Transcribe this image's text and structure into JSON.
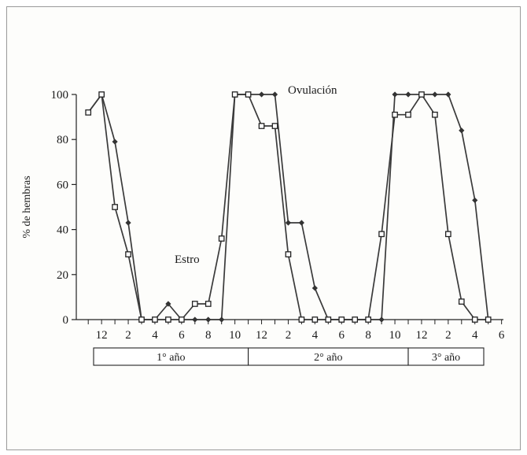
{
  "chart_data": {
    "type": "line",
    "title": "",
    "xlabel": "",
    "ylabel": "% de hembras",
    "ylim": [
      0,
      100
    ],
    "yticks": [
      0,
      20,
      40,
      60,
      80,
      100
    ],
    "xlim": [
      0,
      31
    ],
    "x_tick_labels": [
      "12",
      "2",
      "4",
      "6",
      "8",
      "10",
      "12",
      "2",
      "4",
      "6",
      "8",
      "10",
      "12",
      "2",
      "4",
      "6"
    ],
    "x_tick_positions": [
      2,
      4,
      6,
      8,
      10,
      12,
      14,
      16,
      18,
      20,
      22,
      24,
      26,
      28,
      30,
      32
    ],
    "grid": false,
    "legend": "none",
    "annotations": [
      {
        "text": "Ovulación",
        "near_series": "Ovulación"
      },
      {
        "text": "Estro",
        "near_series": "Estro"
      }
    ],
    "series": [
      {
        "name": "Ovulación",
        "marker": "diamond",
        "color": "#3a3a3a",
        "x": [
          1,
          2,
          3,
          4,
          5,
          6,
          7,
          8,
          9,
          10,
          11,
          12,
          13,
          14,
          15,
          16,
          17,
          18,
          19,
          20,
          21,
          22,
          23,
          24,
          25,
          26,
          27,
          28,
          29,
          30,
          31
        ],
        "y": [
          92,
          100,
          79,
          43,
          0,
          0,
          7,
          0,
          0,
          0,
          0,
          100,
          100,
          100,
          100,
          43,
          43,
          14,
          0,
          0,
          0,
          0,
          0,
          100,
          100,
          100,
          100,
          100,
          84,
          53,
          0
        ]
      },
      {
        "name": "Estro",
        "marker": "square",
        "color": "#3a3a3a",
        "x": [
          1,
          2,
          3,
          4,
          5,
          6,
          7,
          8,
          9,
          10,
          11,
          12,
          13,
          14,
          15,
          16,
          17,
          18,
          19,
          20,
          21,
          22,
          23,
          24,
          25,
          26,
          27,
          28,
          29,
          30,
          31
        ],
        "y": [
          92,
          100,
          50,
          29,
          0,
          0,
          0,
          0,
          7,
          7,
          36,
          100,
          100,
          86,
          86,
          29,
          0,
          0,
          0,
          0,
          0,
          0,
          38,
          91,
          91,
          100,
          91,
          38,
          8,
          0,
          0
        ]
      }
    ],
    "periods": [
      {
        "label": "1° año",
        "from": 1,
        "to": 13
      },
      {
        "label": "2° año",
        "from": 13,
        "to": 25
      },
      {
        "label": "3° año",
        "from": 25,
        "to": 31
      }
    ]
  }
}
